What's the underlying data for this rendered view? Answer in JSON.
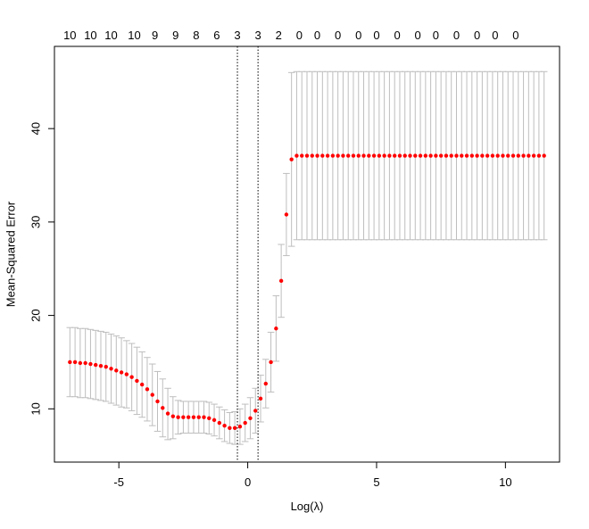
{
  "chart_data": {
    "type": "scatter",
    "xlabel": "Log(λ)",
    "ylabel": "Mean-Squared Error",
    "xlim": [
      -7.5,
      12.1
    ],
    "ylim": [
      4.3,
      48.8
    ],
    "x_ticks": [
      -5,
      0,
      5,
      10
    ],
    "y_ticks": [
      10,
      20,
      30,
      40
    ],
    "top_ticks": [
      {
        "x": -6.9,
        "label": "10"
      },
      {
        "x": -6.1,
        "label": "10"
      },
      {
        "x": -5.3,
        "label": "10"
      },
      {
        "x": -4.4,
        "label": "10"
      },
      {
        "x": -3.6,
        "label": "9"
      },
      {
        "x": -2.8,
        "label": "9"
      },
      {
        "x": -2.0,
        "label": "8"
      },
      {
        "x": -1.2,
        "label": "6"
      },
      {
        "x": -0.4,
        "label": "3"
      },
      {
        "x": 0.4,
        "label": "3"
      },
      {
        "x": 1.2,
        "label": "2"
      },
      {
        "x": 2.0,
        "label": "0"
      },
      {
        "x": 2.7,
        "label": "0"
      },
      {
        "x": 3.5,
        "label": "0"
      },
      {
        "x": 4.3,
        "label": "0"
      },
      {
        "x": 5.0,
        "label": "0"
      },
      {
        "x": 5.8,
        "label": "0"
      },
      {
        "x": 6.6,
        "label": "0"
      },
      {
        "x": 7.3,
        "label": "0"
      },
      {
        "x": 8.1,
        "label": "0"
      },
      {
        "x": 8.9,
        "label": "0"
      },
      {
        "x": 9.6,
        "label": "0"
      },
      {
        "x": 10.4,
        "label": "0"
      }
    ],
    "vlines": [
      -0.4,
      0.4
    ],
    "x_start": -6.9,
    "x_step": 0.2,
    "series": [
      {
        "mean": [
          15.0,
          15.0,
          14.9,
          14.9,
          14.8,
          14.7,
          14.6,
          14.5,
          14.3,
          14.1,
          13.9,
          13.7,
          13.4,
          13.0,
          12.6,
          12.1,
          11.5,
          10.8,
          10.1,
          9.5,
          9.2,
          9.1,
          9.1,
          9.1,
          9.1,
          9.1,
          9.1,
          9.0,
          8.8,
          8.5,
          8.2,
          7.95,
          7.95,
          8.1,
          8.5,
          9.0,
          9.8,
          11.1,
          12.7,
          15.0,
          18.6,
          23.7,
          30.8,
          36.7,
          37.1,
          37.1,
          37.1,
          37.1,
          37.1,
          37.1,
          37.1,
          37.1,
          37.1,
          37.1,
          37.1,
          37.1,
          37.1,
          37.1,
          37.1,
          37.1,
          37.1,
          37.1,
          37.1,
          37.1,
          37.1,
          37.1,
          37.1,
          37.1,
          37.1,
          37.1,
          37.1,
          37.1,
          37.1,
          37.1,
          37.1,
          37.1,
          37.1,
          37.1,
          37.1,
          37.1,
          37.1,
          37.1,
          37.1,
          37.1,
          37.1,
          37.1,
          37.1,
          37.1,
          37.1,
          37.1,
          37.1,
          37.1,
          37.1
        ],
        "upper": [
          18.7,
          18.7,
          18.6,
          18.6,
          18.5,
          18.4,
          18.3,
          18.2,
          18.0,
          17.8,
          17.6,
          17.3,
          17.0,
          16.6,
          16.1,
          15.5,
          14.8,
          14.0,
          13.2,
          12.2,
          11.3,
          10.9,
          10.8,
          10.8,
          10.8,
          10.8,
          10.8,
          10.7,
          10.5,
          10.2,
          9.9,
          9.6,
          9.7,
          10.0,
          10.5,
          11.2,
          12.2,
          13.6,
          15.3,
          18.2,
          22.1,
          27.6,
          35.2,
          46.0,
          46.1,
          46.1,
          46.1,
          46.1,
          46.1,
          46.1,
          46.1,
          46.1,
          46.1,
          46.1,
          46.1,
          46.1,
          46.1,
          46.1,
          46.1,
          46.1,
          46.1,
          46.1,
          46.1,
          46.1,
          46.1,
          46.1,
          46.1,
          46.1,
          46.1,
          46.1,
          46.1,
          46.1,
          46.1,
          46.1,
          46.1,
          46.1,
          46.1,
          46.1,
          46.1,
          46.1,
          46.1,
          46.1,
          46.1,
          46.1,
          46.1,
          46.1,
          46.1,
          46.1,
          46.1,
          46.1,
          46.1,
          46.1,
          46.1
        ],
        "lower": [
          11.3,
          11.3,
          11.2,
          11.2,
          11.1,
          11.0,
          10.9,
          10.8,
          10.6,
          10.4,
          10.2,
          10.1,
          9.8,
          9.4,
          9.1,
          8.7,
          8.2,
          7.6,
          7.0,
          6.7,
          6.8,
          7.3,
          7.4,
          7.4,
          7.4,
          7.4,
          7.4,
          7.3,
          7.1,
          6.8,
          6.5,
          6.3,
          6.2,
          6.2,
          6.5,
          6.8,
          7.4,
          8.6,
          10.1,
          11.8,
          15.1,
          19.8,
          26.4,
          27.4,
          28.1,
          28.1,
          28.1,
          28.1,
          28.1,
          28.1,
          28.1,
          28.1,
          28.1,
          28.1,
          28.1,
          28.1,
          28.1,
          28.1,
          28.1,
          28.1,
          28.1,
          28.1,
          28.1,
          28.1,
          28.1,
          28.1,
          28.1,
          28.1,
          28.1,
          28.1,
          28.1,
          28.1,
          28.1,
          28.1,
          28.1,
          28.1,
          28.1,
          28.1,
          28.1,
          28.1,
          28.1,
          28.1,
          28.1,
          28.1,
          28.1,
          28.1,
          28.1,
          28.1,
          28.1,
          28.1,
          28.1,
          28.1,
          28.1
        ]
      }
    ],
    "colors": {
      "point": "#ff0000",
      "errorbar": "#bebebe",
      "axis": "#000000",
      "vline": "#000000"
    }
  }
}
